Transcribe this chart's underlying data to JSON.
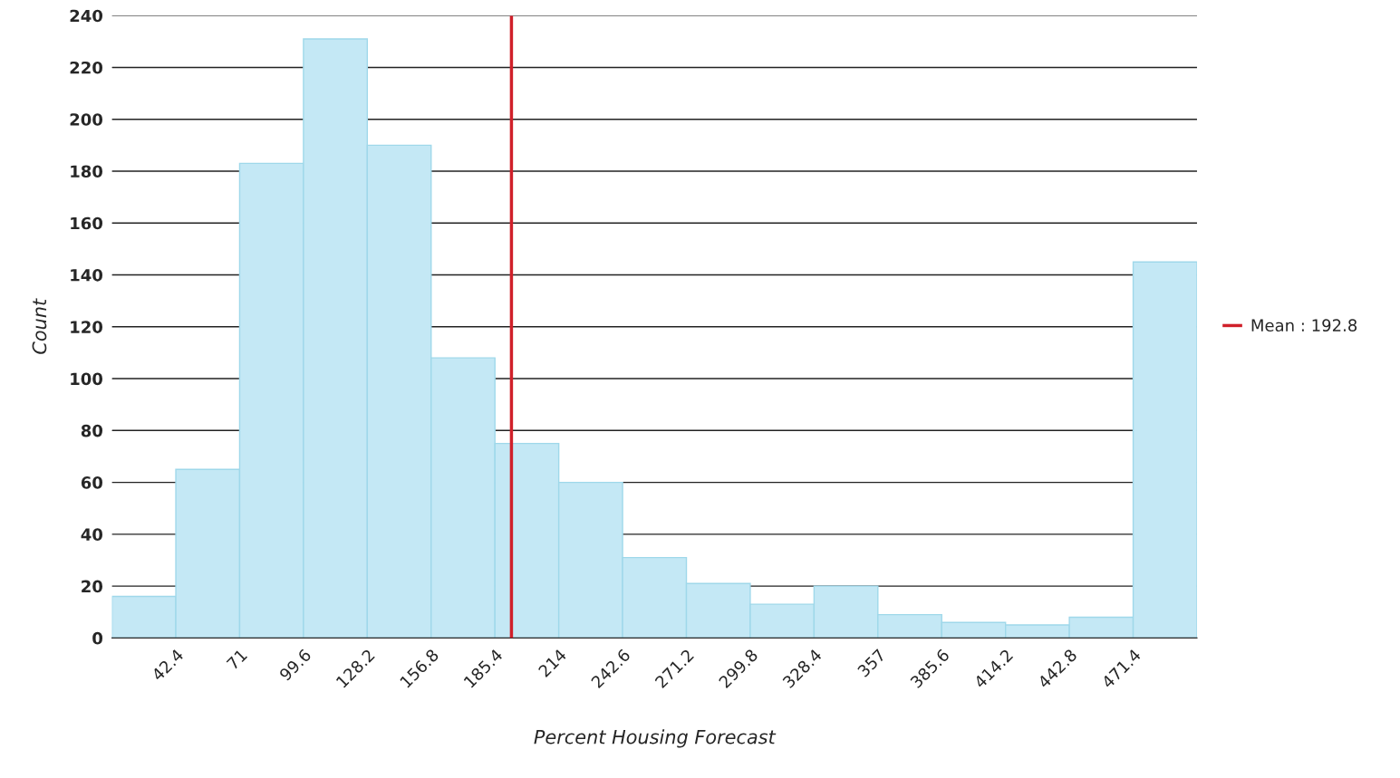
{
  "chart_data": {
    "type": "histogram",
    "xlabel": "Percent Housing Forecast",
    "ylabel": "Count",
    "bins": [
      13.8,
      42.4,
      71,
      99.6,
      128.2,
      156.8,
      185.4,
      214,
      242.6,
      271.2,
      299.8,
      328.4,
      357,
      385.6,
      414.2,
      442.8,
      471.4,
      500
    ],
    "values": [
      16,
      65,
      183,
      231,
      190,
      108,
      75,
      60,
      31,
      21,
      13,
      20,
      9,
      6,
      5,
      8,
      145
    ],
    "color": "#c4e8f5",
    "xlim": [
      13.8,
      500
    ],
    "xticks": [
      42.4,
      71,
      99.6,
      128.2,
      156.8,
      185.4,
      214,
      242.6,
      271.2,
      299.8,
      328.4,
      357,
      385.6,
      414.2,
      442.8,
      471.4
    ],
    "ylim": [
      0,
      240
    ],
    "yticks": [
      0,
      20,
      40,
      60,
      80,
      100,
      120,
      140,
      160,
      180,
      200,
      220,
      240
    ],
    "grid": "y",
    "legend": "right",
    "series": [
      {
        "type": "line",
        "name": "Mean : 192.8",
        "color": "#d0202a",
        "x": [
          192.8,
          192.8
        ],
        "values": [
          0,
          240
        ],
        "line_style": "solid"
      }
    ]
  }
}
